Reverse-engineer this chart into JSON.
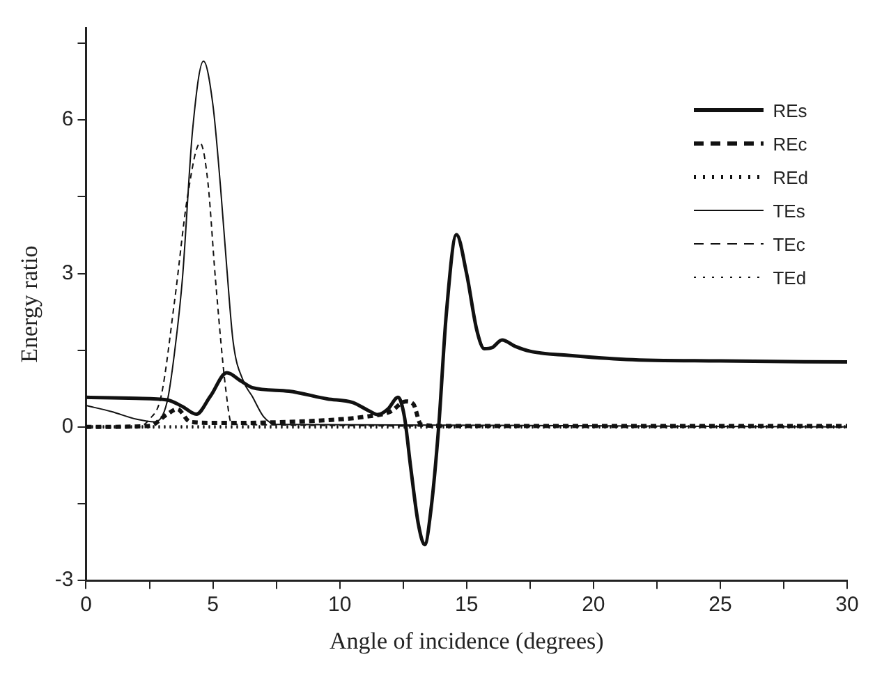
{
  "chart_data": {
    "type": "line",
    "xlabel": "Angle of incidence (degrees)",
    "ylabel": "Energy ratio",
    "xlim": [
      0,
      30
    ],
    "ylim": [
      -3,
      7.8
    ],
    "xticks": [
      0,
      {
        "value": 2.5,
        "label": null
      },
      5,
      {
        "value": 7.5,
        "label": null
      },
      10,
      {
        "value": 12.5,
        "label": null
      },
      15,
      {
        "value": 17.5,
        "label": null
      },
      20,
      {
        "value": 22.5,
        "label": null
      },
      25,
      {
        "value": 27.5,
        "label": null
      },
      30
    ],
    "yticks": [
      -3,
      {
        "value": -1.5,
        "label": null
      },
      0,
      {
        "value": 1.5,
        "label": null
      },
      3,
      {
        "value": 4.5,
        "label": null
      },
      6,
      {
        "value": 7.5,
        "label": null
      }
    ],
    "grid": false,
    "legend": "top right",
    "marker": "none",
    "series": [
      {
        "name": "REs",
        "color": "#111111",
        "line_style": "solid",
        "x": [
          0,
          1,
          2,
          3.2,
          3.8,
          4.35,
          4.9,
          5.55,
          6.1,
          6.55,
          8,
          9.5,
          10.5,
          11.1,
          11.5,
          11.9,
          12.3,
          12.55,
          12.8,
          13.1,
          13.35,
          13.6,
          13.9,
          14.2,
          14.6,
          15,
          15.4,
          15.7,
          16,
          16.4,
          16.9,
          17.5,
          19,
          21.3,
          25,
          30
        ],
        "values": [
          0.58,
          0.57,
          0.56,
          0.53,
          0.4,
          0.25,
          0.6,
          1.06,
          0.9,
          0.77,
          0.7,
          0.55,
          0.48,
          0.33,
          0.24,
          0.35,
          0.58,
          0.2,
          -0.8,
          -1.9,
          -2.3,
          -1.6,
          0,
          2.2,
          3.76,
          3,
          1.9,
          1.53,
          1.55,
          1.7,
          1.58,
          1.48,
          1.4,
          1.32,
          1.29,
          1.27
        ]
      },
      {
        "name": "REc",
        "color": "#111111",
        "line_style": "dashed",
        "x": [
          0,
          2.5,
          3.2,
          3.6,
          4.1,
          5,
          6,
          8,
          10,
          11,
          12,
          12.6,
          12.9,
          13.2,
          14,
          30
        ],
        "values": [
          0,
          0.02,
          0.25,
          0.35,
          0.1,
          0.08,
          0.08,
          0.1,
          0.15,
          0.2,
          0.3,
          0.5,
          0.45,
          0.05,
          0.02,
          0.02
        ]
      },
      {
        "name": "REd",
        "color": "#111111",
        "line_style": "dotted",
        "x": [
          0,
          30
        ],
        "values": [
          0,
          0
        ]
      },
      {
        "name": "TEs",
        "color": "#111111",
        "line_style": "solid",
        "x": [
          0,
          1,
          2,
          2.7,
          3.2,
          3.5,
          3.8,
          4.2,
          4.63,
          5,
          5.3,
          5.55,
          5.8,
          6.2,
          6.55,
          7,
          7.5,
          30
        ],
        "values": [
          0.42,
          0.3,
          0.15,
          0.1,
          0.5,
          1.5,
          2.9,
          5.8,
          7.15,
          6.3,
          4.7,
          3.1,
          1.66,
          0.9,
          0.6,
          0.2,
          0.05,
          0
        ]
      },
      {
        "name": "TEc",
        "color": "#111111",
        "line_style": "dashed",
        "x": [
          0,
          2,
          2.5,
          2.96,
          3.5,
          4,
          4.5,
          4.8,
          5.1,
          5.5,
          5.75,
          30
        ],
        "values": [
          0,
          0,
          0.15,
          0.6,
          2.5,
          4.5,
          5.55,
          4.8,
          2.9,
          0.77,
          0.05,
          0
        ]
      },
      {
        "name": "TEd",
        "color": "#111111",
        "line_style": "dotted",
        "x": [
          0,
          30
        ],
        "values": [
          0,
          0
        ]
      }
    ]
  }
}
